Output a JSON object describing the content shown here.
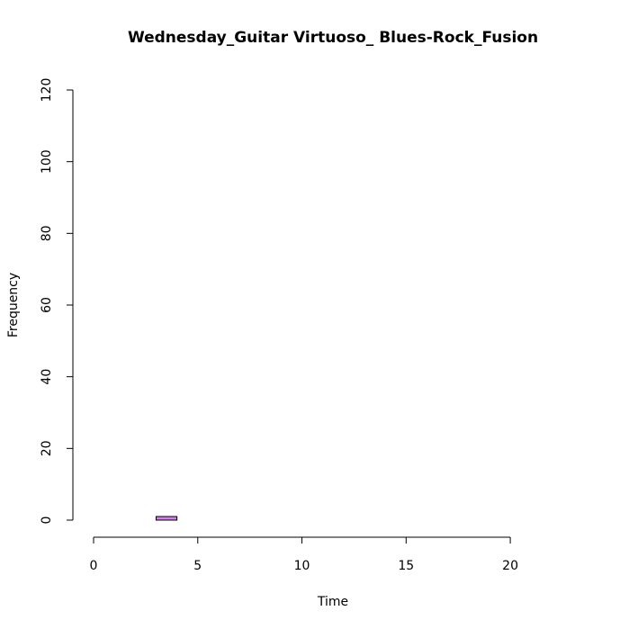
{
  "chart_data": {
    "type": "bar",
    "title": "Wednesday_Guitar Virtuoso_ Blues-Rock_Fusion",
    "xlabel": "Time",
    "ylabel": "Frequency",
    "xlim": [
      0,
      24
    ],
    "ylim": [
      0,
      120
    ],
    "x_ticks": [
      0,
      5,
      10,
      15,
      20
    ],
    "y_ticks": [
      0,
      20,
      40,
      60,
      80,
      100,
      120
    ],
    "bin_width": 1,
    "bins": [
      {
        "x0": 0,
        "x1": 1,
        "count": 0
      },
      {
        "x0": 1,
        "x1": 2,
        "count": 0
      },
      {
        "x0": 2,
        "x1": 3,
        "count": 0
      },
      {
        "x0": 3,
        "x1": 4,
        "count": 1
      },
      {
        "x0": 4,
        "x1": 5,
        "count": 0
      },
      {
        "x0": 5,
        "x1": 6,
        "count": 0
      },
      {
        "x0": 6,
        "x1": 7,
        "count": 0
      },
      {
        "x0": 7,
        "x1": 8,
        "count": 0
      },
      {
        "x0": 8,
        "x1": 9,
        "count": 0
      },
      {
        "x0": 9,
        "x1": 10,
        "count": 0
      },
      {
        "x0": 10,
        "x1": 11,
        "count": 0
      },
      {
        "x0": 11,
        "x1": 12,
        "count": 0
      },
      {
        "x0": 12,
        "x1": 13,
        "count": 0
      },
      {
        "x0": 13,
        "x1": 14,
        "count": 0
      },
      {
        "x0": 14,
        "x1": 15,
        "count": 0
      },
      {
        "x0": 15,
        "x1": 16,
        "count": 0
      },
      {
        "x0": 16,
        "x1": 17,
        "count": 0
      },
      {
        "x0": 17,
        "x1": 18,
        "count": 0
      },
      {
        "x0": 18,
        "x1": 19,
        "count": 0
      },
      {
        "x0": 19,
        "x1": 20,
        "count": 0
      },
      {
        "x0": 20,
        "x1": 21,
        "count": 0
      },
      {
        "x0": 21,
        "x1": 22,
        "count": 0
      },
      {
        "x0": 22,
        "x1": 23,
        "count": 0
      },
      {
        "x0": 23,
        "x1": 24,
        "count": 0
      }
    ],
    "bar_color": "#d17fe8",
    "grid": false,
    "legend": "none"
  }
}
